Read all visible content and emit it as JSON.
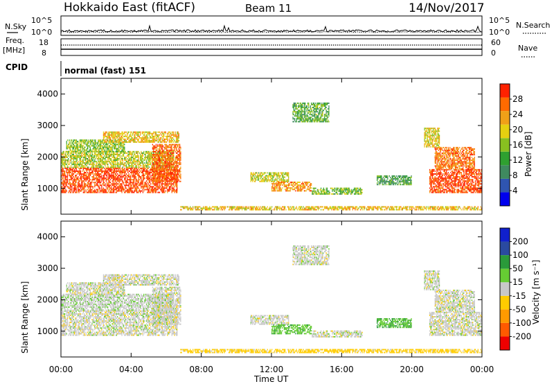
{
  "header": {
    "title": "Hokkaido East (fitACF)",
    "beam": "Beam 11",
    "date": "14/Nov/2017"
  },
  "strip_labels": {
    "nsky": "N.Sky",
    "freq_top": "Freq.",
    "freq_unit": "[MHz]",
    "cpid": "CPID",
    "nsearch": "N.Search",
    "nave": "Nave",
    "nsky_ticks": [
      "10^5",
      "10^0"
    ],
    "nsearch_ticks": [
      "10^5",
      "10^0"
    ],
    "freq_ticks": [
      "18",
      "8"
    ],
    "nave_ticks": [
      "60",
      "0"
    ]
  },
  "cpid_text": "normal (fast) 151",
  "colors": {
    "power_scale": [
      "#0000ee",
      "#2f55b0",
      "#3f8a5f",
      "#2fa030",
      "#88c020",
      "#e6d010",
      "#f0a018",
      "#ff6a00",
      "#ff2200"
    ],
    "velocity_scale": [
      "#ee0000",
      "#ff5a00",
      "#ff9a00",
      "#ffcc00",
      "#c8c8c8",
      "#66cc33",
      "#2a9a3a",
      "#2a4aa0",
      "#1020cc"
    ]
  },
  "chart_data": [
    {
      "type": "heatmap",
      "name": "power",
      "xlabel": "",
      "ylabel": "Slant Range [km]",
      "xlim": [
        0,
        24
      ],
      "ylim": [
        180,
        4500
      ],
      "yticks": [
        "1000",
        "2000",
        "3000",
        "4000"
      ],
      "colorbar_label": "Power [dB]",
      "colorbar_ticks": [
        "4",
        "8",
        "12",
        "16",
        "20",
        "24",
        "28"
      ],
      "colorbar_range": [
        0,
        32
      ],
      "regions": [
        {
          "t": [
            0.0,
            6.6
          ],
          "r": [
            850,
            1650
          ],
          "level": 29
        },
        {
          "t": [
            0.0,
            6.4
          ],
          "r": [
            1650,
            2150
          ],
          "level": 18
        },
        {
          "t": [
            0.3,
            3.6
          ],
          "r": [
            2150,
            2550
          ],
          "level": 16
        },
        {
          "t": [
            2.4,
            6.7
          ],
          "r": [
            2450,
            2800
          ],
          "level": 21
        },
        {
          "t": [
            5.2,
            6.8
          ],
          "r": [
            1200,
            2400
          ],
          "level": 27
        },
        {
          "t": [
            10.8,
            13.0
          ],
          "r": [
            1200,
            1500
          ],
          "level": 18
        },
        {
          "t": [
            12.0,
            14.3
          ],
          "r": [
            900,
            1200
          ],
          "level": 24
        },
        {
          "t": [
            14.3,
            17.2
          ],
          "r": [
            800,
            1000
          ],
          "level": 15
        },
        {
          "t": [
            18.0,
            20.0
          ],
          "r": [
            1100,
            1400
          ],
          "level": 12
        },
        {
          "t": [
            13.2,
            15.3
          ],
          "r": [
            3100,
            3700
          ],
          "level": 13
        },
        {
          "t": [
            21.0,
            24.0
          ],
          "r": [
            850,
            1600
          ],
          "level": 29
        },
        {
          "t": [
            21.3,
            23.6
          ],
          "r": [
            1600,
            2300
          ],
          "level": 26
        },
        {
          "t": [
            20.7,
            21.6
          ],
          "r": [
            2300,
            2900
          ],
          "level": 20
        },
        {
          "t": [
            6.8,
            24.0
          ],
          "r": [
            300,
            420
          ],
          "level": 21
        }
      ]
    },
    {
      "type": "heatmap",
      "name": "velocity",
      "xlabel": "Time UT",
      "ylabel": "Slant Range [km]",
      "xlim": [
        0,
        24
      ],
      "ylim": [
        180,
        4500
      ],
      "xticks": [
        "00:00",
        "04:00",
        "08:00",
        "12:00",
        "16:00",
        "20:00",
        "00:00"
      ],
      "yticks": [
        "1000",
        "2000",
        "3000",
        "4000"
      ],
      "colorbar_label": "Velocity [m s⁻¹]",
      "colorbar_ticks": [
        "-200",
        "-100",
        "-50",
        "-15",
        "15",
        "50",
        "100",
        "200"
      ],
      "colorbar_range": [
        -250,
        250
      ],
      "regions": [
        {
          "t": [
            0.0,
            6.6
          ],
          "r": [
            850,
            1650
          ],
          "v": 0
        },
        {
          "t": [
            0.0,
            6.4
          ],
          "r": [
            1650,
            2150
          ],
          "v": 5
        },
        {
          "t": [
            0.3,
            3.6
          ],
          "r": [
            2150,
            2550
          ],
          "v": 0
        },
        {
          "t": [
            2.4,
            6.7
          ],
          "r": [
            2450,
            2800
          ],
          "v": 0
        },
        {
          "t": [
            5.2,
            6.8
          ],
          "r": [
            1200,
            2400
          ],
          "v": 0
        },
        {
          "t": [
            10.8,
            13.0
          ],
          "r": [
            1200,
            1500
          ],
          "v": 0
        },
        {
          "t": [
            12.0,
            14.3
          ],
          "r": [
            900,
            1200
          ],
          "v": 40
        },
        {
          "t": [
            14.3,
            17.2
          ],
          "r": [
            800,
            1000
          ],
          "v": 0
        },
        {
          "t": [
            18.0,
            20.0
          ],
          "r": [
            1100,
            1400
          ],
          "v": 45
        },
        {
          "t": [
            13.2,
            15.3
          ],
          "r": [
            3100,
            3700
          ],
          "v": 0
        },
        {
          "t": [
            21.0,
            24.0
          ],
          "r": [
            850,
            1600
          ],
          "v": 0
        },
        {
          "t": [
            21.3,
            23.6
          ],
          "r": [
            1600,
            2300
          ],
          "v": 0
        },
        {
          "t": [
            20.7,
            21.6
          ],
          "r": [
            2300,
            2900
          ],
          "v": 0
        },
        {
          "t": [
            6.8,
            24.0
          ],
          "r": [
            300,
            420
          ],
          "v": -30
        }
      ]
    }
  ]
}
